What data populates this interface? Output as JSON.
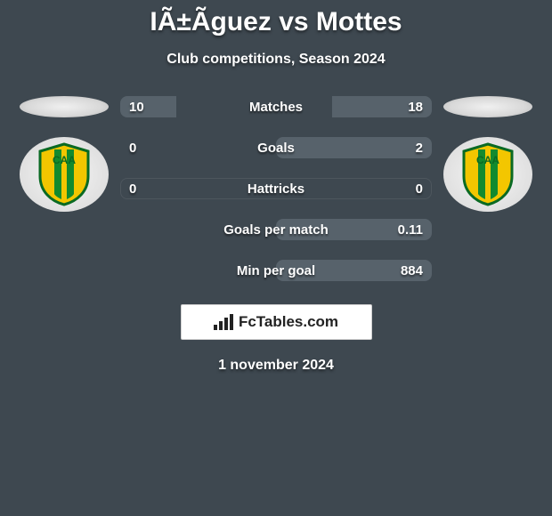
{
  "header": {
    "title": "IÃ±Ãguez vs Mottes",
    "subtitle": "Club competitions, Season 2024"
  },
  "stats": {
    "rows": [
      {
        "label": "Matches",
        "left": "10",
        "right": "18",
        "left_pct": 36,
        "right_pct": 64
      },
      {
        "label": "Goals",
        "left": "0",
        "right": "2",
        "left_pct": 0,
        "right_pct": 100
      },
      {
        "label": "Hattricks",
        "left": "0",
        "right": "0",
        "left_pct": 0,
        "right_pct": 0
      },
      {
        "label": "Goals per match",
        "left": "",
        "right": "0.11",
        "left_pct": 0,
        "right_pct": 100
      },
      {
        "label": "Min per goal",
        "left": "",
        "right": "884",
        "left_pct": 0,
        "right_pct": 100
      }
    ],
    "bar_fill_color": "#57626b",
    "bar_bg_color": "transparent"
  },
  "badges": {
    "left_shield_colors": {
      "bg": "#f3c600",
      "stripe": "#128a2f",
      "outline": "#0a6a23"
    },
    "right_shield_colors": {
      "bg": "#f3c600",
      "stripe": "#128a2f",
      "outline": "#0a6a23"
    }
  },
  "brand": {
    "text": "FcTables.com",
    "icon": "bars-icon"
  },
  "footer": {
    "date": "1 november 2024"
  },
  "colors": {
    "page_bg": "#3e4850",
    "text": "#ffffff"
  }
}
